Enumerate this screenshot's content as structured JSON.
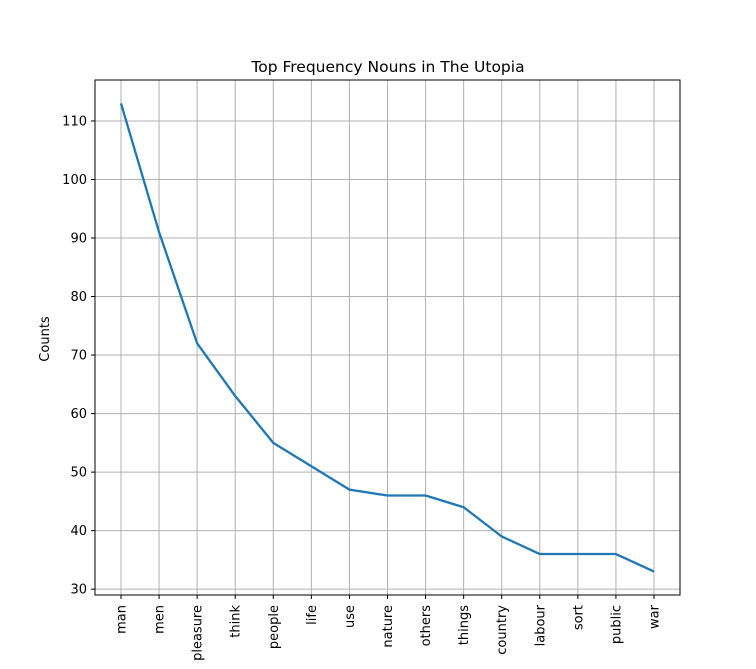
{
  "chart_data": {
    "type": "line",
    "title": "Top Frequency Nouns in The Utopia",
    "xlabel": "",
    "ylabel": "Counts",
    "categories": [
      "man",
      "men",
      "pleasure",
      "think",
      "people",
      "life",
      "use",
      "nature",
      "others",
      "things",
      "country",
      "labour",
      "sort",
      "public",
      "war"
    ],
    "values": [
      113,
      91,
      72,
      63,
      55,
      51,
      47,
      46,
      46,
      44,
      39,
      36,
      36,
      36,
      33
    ],
    "yticks": [
      30,
      40,
      50,
      60,
      70,
      80,
      90,
      100,
      110
    ],
    "ylim": [
      29,
      117
    ],
    "grid": true,
    "line_color": "#1f77b4",
    "grid_color": "#b0b0b0"
  }
}
